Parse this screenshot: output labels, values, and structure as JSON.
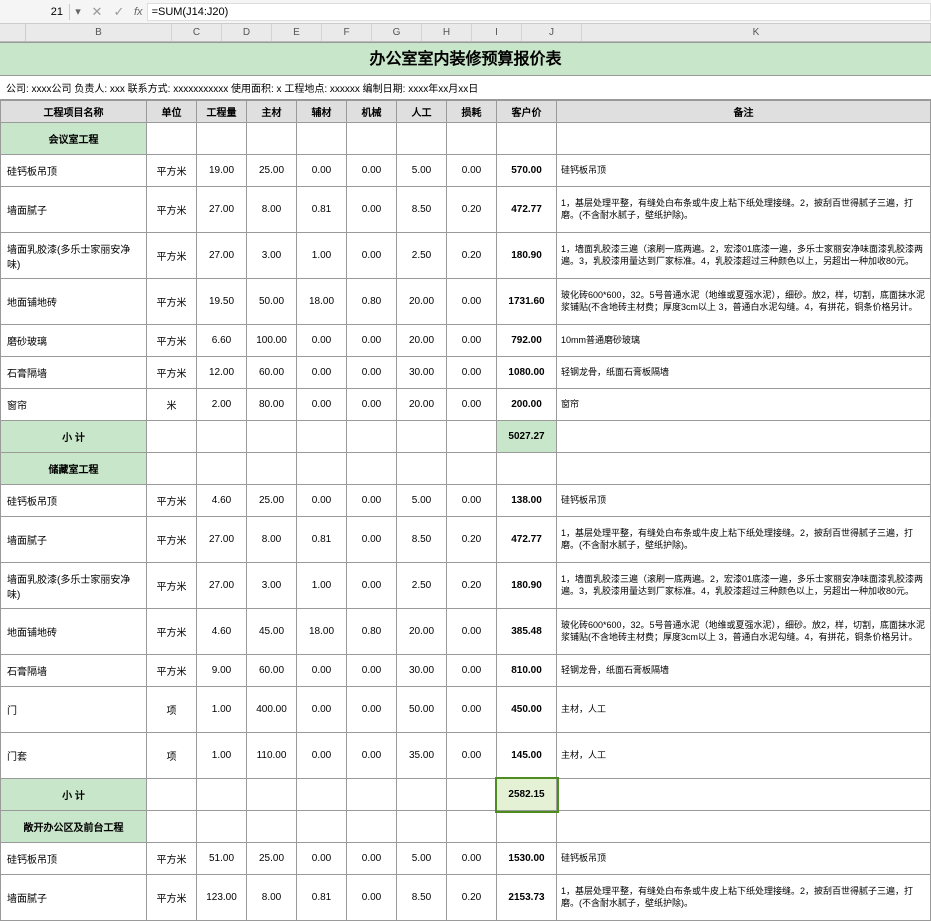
{
  "toolbar": {
    "cell_ref": "21",
    "formula": "=SUM(J14:J20)",
    "fx": "fx"
  },
  "col_headers": [
    "B",
    "C",
    "D",
    "E",
    "F",
    "G",
    "H",
    "I",
    "J",
    "K"
  ],
  "title": "办公室室内装修预算报价表",
  "meta": "公司: xxxx公司   负责人: xxx   联系方式: xxxxxxxxxxx            使用面积: x     工程地点:   xxxxxx       编制日期: xxxx年xx月xx日",
  "headers": {
    "name": "工程项目名称",
    "unit": "单位",
    "qty": "工程量",
    "main": "主材",
    "aux": "辅材",
    "mach": "机械",
    "labor": "人工",
    "loss": "损耗",
    "price": "客户价",
    "note": "备注"
  },
  "sections": [
    {
      "title": "会议室工程",
      "rows": [
        {
          "name": "硅钙板吊顶",
          "unit": "平方米",
          "qty": "19.00",
          "main": "25.00",
          "aux": "0.00",
          "mach": "0.00",
          "labor": "5.00",
          "loss": "0.00",
          "price": "570.00",
          "note": "硅钙板吊顶",
          "tall": false
        },
        {
          "name": "墙面腻子",
          "unit": "平方米",
          "qty": "27.00",
          "main": "8.00",
          "aux": "0.81",
          "mach": "0.00",
          "labor": "8.50",
          "loss": "0.20",
          "price": "472.77",
          "note": "1，基层处理平整，有缝处白布条或牛皮上粘下纸处理接缝。2，披刮百世得腻子三遍，打磨。(不含耐水腻子，壁纸护除)。",
          "tall": true
        },
        {
          "name": "墙面乳胶漆(多乐士家丽安净味)",
          "unit": "平方米",
          "qty": "27.00",
          "main": "3.00",
          "aux": "1.00",
          "mach": "0.00",
          "labor": "2.50",
          "loss": "0.20",
          "price": "180.90",
          "note": "1，墙面乳胶漆三遍（滚刷一底两遍。2，宏漆01底漆一遍，多乐士家丽安净味面漆乳胶漆两遍。3，乳胶漆用量达到厂家标准。4，乳胶漆超过三种颜色以上，另超出一种加收80元。",
          "tall": true
        },
        {
          "name": "地面铺地砖",
          "unit": "平方米",
          "qty": "19.50",
          "main": "50.00",
          "aux": "18.00",
          "mach": "0.80",
          "labor": "20.00",
          "loss": "0.00",
          "price": "1731.60",
          "note": "玻化砖600*600，32。5号普通水泥（地维或夏强水泥），细砂。放2，样，切割，底面抹水泥浆铺贴(不含地砖主材费；厚度3cm以上 3，普通白水泥勾缝。4，有拼花，铜条价格另计。",
          "tall": true
        },
        {
          "name": "磨砂玻璃",
          "unit": "平方米",
          "qty": "6.60",
          "main": "100.00",
          "aux": "0.00",
          "mach": "0.00",
          "labor": "20.00",
          "loss": "0.00",
          "price": "792.00",
          "note": "10mm普通磨砂玻璃",
          "tall": false
        },
        {
          "name": "石膏隔墙",
          "unit": "平方米",
          "qty": "12.00",
          "main": "60.00",
          "aux": "0.00",
          "mach": "0.00",
          "labor": "30.00",
          "loss": "0.00",
          "price": "1080.00",
          "note": "轻钢龙骨，纸面石膏板隔墙",
          "tall": false
        },
        {
          "name": "窗帘",
          "unit": "米",
          "qty": "2.00",
          "main": "80.00",
          "aux": "0.00",
          "mach": "0.00",
          "labor": "20.00",
          "loss": "0.00",
          "price": "200.00",
          "note": "窗帘",
          "tall": false
        }
      ],
      "subtotal": "5027.27"
    },
    {
      "title": "储藏室工程",
      "rows": [
        {
          "name": "硅钙板吊顶",
          "unit": "平方米",
          "qty": "4.60",
          "main": "25.00",
          "aux": "0.00",
          "mach": "0.00",
          "labor": "5.00",
          "loss": "0.00",
          "price": "138.00",
          "note": "硅钙板吊顶",
          "tall": false
        },
        {
          "name": "墙面腻子",
          "unit": "平方米",
          "qty": "27.00",
          "main": "8.00",
          "aux": "0.81",
          "mach": "0.00",
          "labor": "8.50",
          "loss": "0.20",
          "price": "472.77",
          "note": "1，基层处理平整，有缝处白布条或牛皮上粘下纸处理接缝。2，披刮百世得腻子三遍，打磨。(不含耐水腻子，壁纸护除)。",
          "tall": true
        },
        {
          "name": "墙面乳胶漆(多乐士家丽安净味)",
          "unit": "平方米",
          "qty": "27.00",
          "main": "3.00",
          "aux": "1.00",
          "mach": "0.00",
          "labor": "2.50",
          "loss": "0.20",
          "price": "180.90",
          "note": "1，墙面乳胶漆三遍（滚刷一底两遍。2，宏漆01底漆一遍，多乐士家丽安净味面漆乳胶漆两遍。3，乳胶漆用量达到厂家标准。4，乳胶漆超过三种颜色以上，另超出一种加收80元。",
          "tall": true
        },
        {
          "name": "地面铺地砖",
          "unit": "平方米",
          "qty": "4.60",
          "main": "45.00",
          "aux": "18.00",
          "mach": "0.80",
          "labor": "20.00",
          "loss": "0.00",
          "price": "385.48",
          "note": "玻化砖600*600，32。5号普通水泥（地维或夏强水泥），细砂。放2，样，切割，底面抹水泥浆铺贴(不含地砖主材费；厚度3cm以上 3，普通白水泥勾缝。4，有拼花，铜条价格另计。",
          "tall": true
        },
        {
          "name": "石膏隔墙",
          "unit": "平方米",
          "qty": "9.00",
          "main": "60.00",
          "aux": "0.00",
          "mach": "0.00",
          "labor": "30.00",
          "loss": "0.00",
          "price": "810.00",
          "note": "轻钢龙骨，纸面石膏板隔墙",
          "tall": false
        },
        {
          "name": "门",
          "unit": "项",
          "qty": "1.00",
          "main": "400.00",
          "aux": "0.00",
          "mach": "0.00",
          "labor": "50.00",
          "loss": "0.00",
          "price": "450.00",
          "note": "主材，人工",
          "tall": true
        },
        {
          "name": "门套",
          "unit": "项",
          "qty": "1.00",
          "main": "110.00",
          "aux": "0.00",
          "mach": "0.00",
          "labor": "35.00",
          "loss": "0.00",
          "price": "145.00",
          "note": "主材，人工",
          "tall": true
        }
      ],
      "subtotal": "2582.15",
      "subtotal_selected": true
    },
    {
      "title": "敞开办公区及前台工程",
      "rows": [
        {
          "name": "硅钙板吊顶",
          "unit": "平方米",
          "qty": "51.00",
          "main": "25.00",
          "aux": "0.00",
          "mach": "0.00",
          "labor": "5.00",
          "loss": "0.00",
          "price": "1530.00",
          "note": "硅钙板吊顶",
          "tall": false
        },
        {
          "name": "墙面腻子",
          "unit": "平方米",
          "qty": "123.00",
          "main": "8.00",
          "aux": "0.81",
          "mach": "0.00",
          "labor": "8.50",
          "loss": "0.20",
          "price": "2153.73",
          "note": "1，基层处理平整，有缝处白布条或牛皮上粘下纸处理接缝。2，披刮百世得腻子三遍，打磨。(不含耐水腻子，壁纸护除)。",
          "tall": true
        }
      ]
    }
  ],
  "labels": {
    "subtotal": "小  计"
  }
}
